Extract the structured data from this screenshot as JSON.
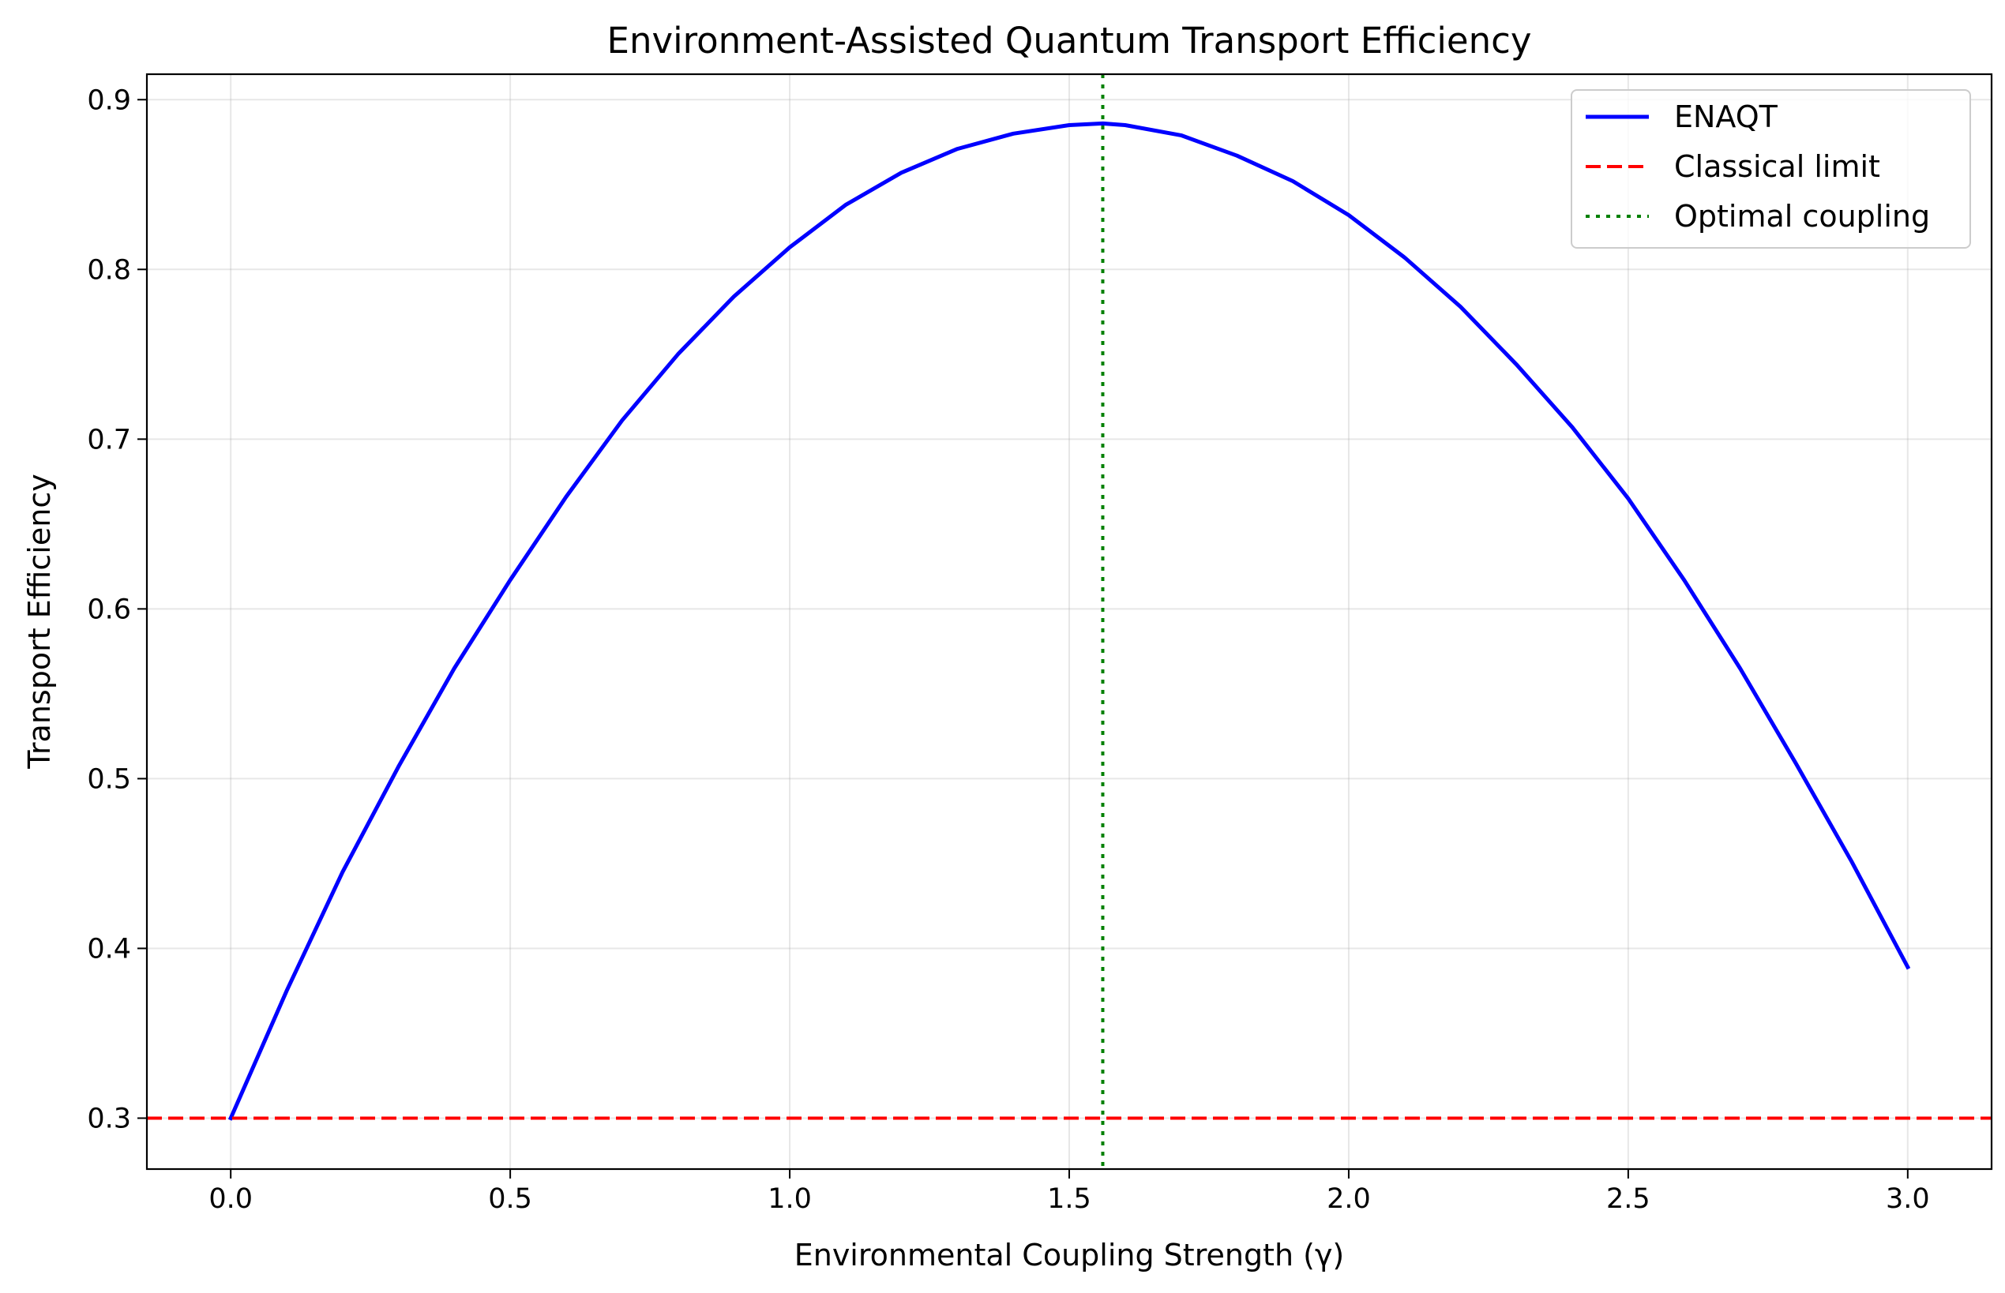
{
  "chart_data": {
    "type": "line",
    "title": "Environment-Assisted Quantum Transport Efficiency",
    "xlabel": "Environmental Coupling Strength (γ)",
    "ylabel": "Transport Efficiency",
    "xlim": [
      -0.15,
      3.15
    ],
    "ylim": [
      0.27,
      0.915
    ],
    "xticks": [
      0.0,
      0.5,
      1.0,
      1.5,
      2.0,
      2.5,
      3.0
    ],
    "xtick_labels": [
      "0.0",
      "0.5",
      "1.0",
      "1.5",
      "2.0",
      "2.5",
      "3.0"
    ],
    "yticks": [
      0.3,
      0.4,
      0.5,
      0.6,
      0.7,
      0.8,
      0.9
    ],
    "ytick_labels": [
      "0.3",
      "0.4",
      "0.5",
      "0.6",
      "0.7",
      "0.8",
      "0.9"
    ],
    "grid": true,
    "legend_position": "top-right",
    "series": [
      {
        "name": "ENAQT",
        "style": "solid",
        "color": "#0000ff",
        "x": [
          0.0,
          0.1,
          0.2,
          0.3,
          0.4,
          0.5,
          0.6,
          0.7,
          0.8,
          0.9,
          1.0,
          1.1,
          1.2,
          1.3,
          1.4,
          1.5,
          1.56,
          1.6,
          1.7,
          1.8,
          1.9,
          2.0,
          2.1,
          2.2,
          2.3,
          2.4,
          2.5,
          2.6,
          2.7,
          2.8,
          2.9,
          3.0
        ],
        "y": [
          0.3,
          0.375,
          0.445,
          0.507,
          0.565,
          0.617,
          0.666,
          0.711,
          0.75,
          0.784,
          0.813,
          0.838,
          0.857,
          0.871,
          0.88,
          0.885,
          0.886,
          0.885,
          0.879,
          0.867,
          0.852,
          0.832,
          0.807,
          0.778,
          0.744,
          0.707,
          0.665,
          0.617,
          0.565,
          0.509,
          0.451,
          0.389
        ]
      },
      {
        "name": "Classical limit",
        "style": "dashed",
        "color": "#ff0000",
        "orientation": "horizontal",
        "value": 0.3
      },
      {
        "name": "Optimal coupling",
        "style": "dotted",
        "color": "#008000",
        "orientation": "vertical",
        "value": 1.56
      }
    ]
  }
}
